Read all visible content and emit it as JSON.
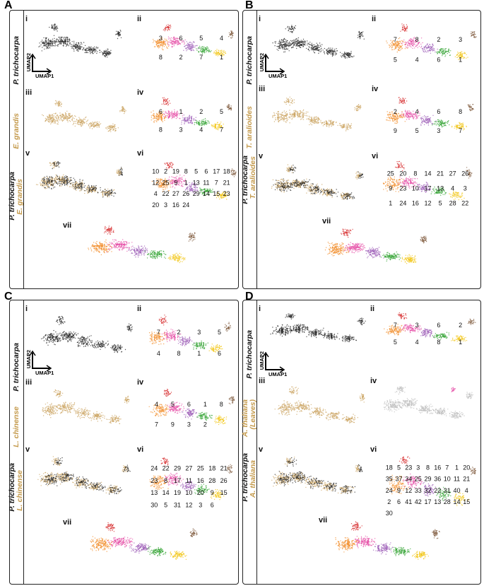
{
  "panels": [
    {
      "letter": "A",
      "labels_top": [
        "P. trichocarpa"
      ],
      "labels_mid": [
        "E. grandis"
      ],
      "labels_bottom": [
        "P. trichocarpa",
        "E. grandis"
      ],
      "subs": [
        "i",
        "ii",
        "iii",
        "iv",
        "v",
        "vi",
        "vii"
      ],
      "axis": {
        "y": "UMAP2",
        "x": "UMAP1"
      }
    },
    {
      "letter": "B",
      "labels_top": [
        "P. trichocarpa"
      ],
      "labels_mid": [
        "T. aralioides"
      ],
      "labels_bottom": [
        "P. trichocarpa",
        "T. aralioides"
      ],
      "subs": [
        "i",
        "ii",
        "iii",
        "iv",
        "v",
        "vi",
        "vii"
      ],
      "axis": {
        "y": "UMAP2",
        "x": "UMAP1"
      }
    },
    {
      "letter": "C",
      "labels_top": [
        "P. trichocarpa"
      ],
      "labels_mid": [
        "L. chinense"
      ],
      "labels_bottom": [
        "P. trichocarpa",
        "L. chinense"
      ],
      "subs": [
        "i",
        "ii",
        "iii",
        "iv",
        "v",
        "vi",
        "vii"
      ],
      "axis": {
        "y": "UMAP2",
        "x": "UMAP1"
      }
    },
    {
      "letter": "D",
      "labels_top": [
        "P. trichocarpa"
      ],
      "labels_mid": [
        "A. thaliana",
        "(Leaves)"
      ],
      "labels_bottom": [
        "P. trichocarpa",
        "A. thaliana"
      ],
      "subs": [
        "i",
        "ii",
        "iii",
        "iv",
        "v",
        "vi",
        "vii"
      ],
      "axis": {
        "y": "UMAP2",
        "x": "UMAP1"
      }
    }
  ],
  "cluster_labels": {
    "A_ii": [
      "3",
      "6",
      "5",
      "4",
      "8",
      "2",
      "7",
      "1"
    ],
    "A_iv": [
      "6",
      "1",
      "2",
      "5",
      "8",
      "3",
      "4",
      "7"
    ],
    "A_vi": [
      "10",
      "2",
      "19",
      "8",
      "5",
      "6",
      "17",
      "18",
      "12",
      "25",
      "9",
      "1",
      "13",
      "11",
      "7",
      "21",
      "4",
      "22",
      "27",
      "26",
      "29",
      "14",
      "15",
      "23",
      "20",
      "3",
      "16",
      "24"
    ],
    "B_ii": [
      "7",
      "8",
      "2",
      "3",
      "5",
      "4",
      "6",
      "1"
    ],
    "B_iv": [
      "2",
      "4",
      "6",
      "8",
      "9",
      "5",
      "3",
      "7"
    ],
    "B_vi": [
      "25",
      "20",
      "8",
      "14",
      "21",
      "27",
      "26",
      "9",
      "23",
      "10",
      "17",
      "13",
      "4",
      "3",
      "1",
      "24",
      "16",
      "12",
      "5",
      "28",
      "22"
    ],
    "C_ii": [
      "7",
      "2",
      "3",
      "5",
      "4",
      "8",
      "1",
      "6"
    ],
    "C_iv": [
      "4",
      "5",
      "6",
      "1",
      "8",
      "7",
      "9",
      "3",
      "2"
    ],
    "C_vi": [
      "24",
      "22",
      "29",
      "27",
      "25",
      "18",
      "21",
      "23",
      "8",
      "17",
      "11",
      "16",
      "28",
      "26",
      "13",
      "14",
      "19",
      "10",
      "20",
      "9",
      "15",
      "30",
      "5",
      "31",
      "12",
      "3",
      "6"
    ],
    "D_ii": [
      "7",
      "3",
      "6",
      "2",
      "5",
      "4",
      "8",
      "1"
    ],
    "D_vi": [
      "18",
      "5",
      "23",
      "3",
      "8",
      "16",
      "7",
      "1",
      "20",
      "35",
      "37",
      "34",
      "25",
      "29",
      "36",
      "10",
      "11",
      "21",
      "24",
      "9",
      "12",
      "33",
      "32",
      "22",
      "31",
      "40",
      "4",
      "2",
      "6",
      "41",
      "42",
      "17",
      "13",
      "28",
      "14",
      "15",
      "30"
    ]
  },
  "colors": {
    "black_points": "#222222",
    "gold_points": "#c9a25e",
    "grey_points": "#bdbdbd",
    "label_gold": "#c49a4c"
  }
}
